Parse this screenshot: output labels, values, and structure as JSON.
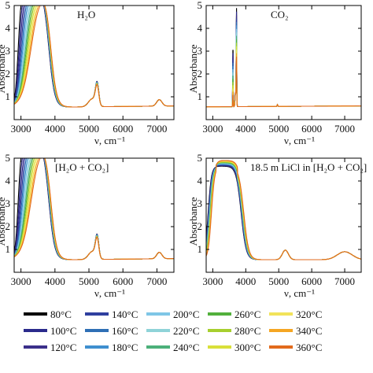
{
  "chart_data": [
    {
      "type": "line",
      "title": "H₂O",
      "xlabel": "ν, cm⁻¹",
      "ylabel": "Absorbance",
      "xlim": [
        2800,
        7500
      ],
      "ylim": [
        0,
        5
      ],
      "xticks": [
        3000,
        4000,
        5000,
        6000,
        7000
      ],
      "yticks": [
        0,
        1,
        2,
        3,
        4,
        5
      ],
      "profile": "water",
      "series_note": "one curve per temperature in the legend",
      "reference_points": {
        "x": [
          2800,
          3000,
          3300,
          3500,
          3800,
          4000,
          4500,
          5000,
          5300,
          5600,
          6000,
          6500,
          7000,
          7100,
          7500
        ],
        "y": [
          1.0,
          5.0,
          5.0,
          5.0,
          4.6,
          1.7,
          0.6,
          0.62,
          1.45,
          0.62,
          0.58,
          0.62,
          0.8,
          0.88,
          0.65
        ]
      }
    },
    {
      "type": "line",
      "title": "CO₂",
      "xlabel": "ν, cm⁻¹",
      "ylabel": "Absorbance",
      "xlim": [
        2800,
        7500
      ],
      "ylim": [
        0,
        5
      ],
      "xticks": [
        3000,
        4000,
        5000,
        6000,
        7000
      ],
      "yticks": [
        0,
        1,
        2,
        3,
        4,
        5
      ],
      "profile": "co2",
      "reference_points": {
        "x": [
          2800,
          3500,
          3610,
          3640,
          3690,
          3720,
          3760,
          4000,
          4950,
          5000,
          7000,
          7500
        ],
        "y": [
          0.55,
          0.56,
          3.5,
          0.7,
          1.2,
          5.0,
          0.6,
          0.56,
          0.62,
          0.56,
          0.6,
          0.6
        ]
      }
    },
    {
      "type": "line",
      "title": "[H₂O + CO₂]",
      "xlabel": "ν, cm⁻¹",
      "ylabel": "Absorbance",
      "xlim": [
        2800,
        7500
      ],
      "ylim": [
        0,
        5
      ],
      "xticks": [
        3000,
        4000,
        5000,
        6000,
        7000
      ],
      "yticks": [
        0,
        1,
        2,
        3,
        4,
        5
      ],
      "profile": "water"
    },
    {
      "type": "line",
      "title": "18.5 m LiCl in [H₂O + CO₂]",
      "xlabel": "ν, cm⁻¹",
      "ylabel": "Absorbance",
      "xlim": [
        2800,
        7500
      ],
      "ylim": [
        0,
        5
      ],
      "xticks": [
        3000,
        4000,
        5000,
        6000,
        7000
      ],
      "yticks": [
        0,
        1,
        2,
        3,
        4,
        5
      ],
      "profile": "licl"
    }
  ],
  "legend": {
    "items": [
      {
        "label": "80°C",
        "color": "#000000"
      },
      {
        "label": "100°C",
        "color": "#2a2a8c"
      },
      {
        "label": "120°C",
        "color": "#3b2f8a"
      },
      {
        "label": "140°C",
        "color": "#2f3f9f"
      },
      {
        "label": "160°C",
        "color": "#2e6fb5"
      },
      {
        "label": "180°C",
        "color": "#3f8fcf"
      },
      {
        "label": "200°C",
        "color": "#7fc6e6"
      },
      {
        "label": "220°C",
        "color": "#8fd3d8"
      },
      {
        "label": "240°C",
        "color": "#4cb07a"
      },
      {
        "label": "260°C",
        "color": "#52b03c"
      },
      {
        "label": "280°C",
        "color": "#a7cf2e"
      },
      {
        "label": "300°C",
        "color": "#d9e03a"
      },
      {
        "label": "320°C",
        "color": "#f2e35a"
      },
      {
        "label": "340°C",
        "color": "#f5a623"
      },
      {
        "label": "360°C",
        "color": "#e26a1c"
      }
    ]
  }
}
